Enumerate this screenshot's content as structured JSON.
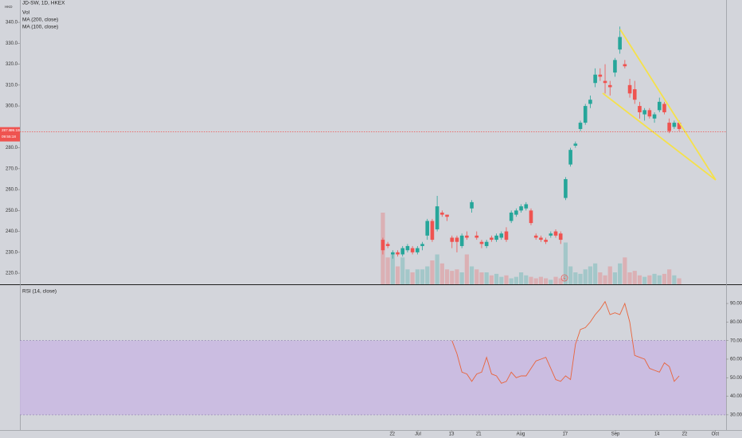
{
  "chart_data": {
    "type": "candlestick",
    "title": "JD-SW, 1D, HKEX",
    "currency": "HKD",
    "legend": [
      "Vol",
      "MA (200, close)",
      "MA (100, close)"
    ],
    "xlim": [
      -73.5,
      69.5
    ],
    "xticks": [
      {
        "value": 1.9,
        "label": "22"
      },
      {
        "value": 7.1,
        "label": "Jul"
      },
      {
        "value": 13.9,
        "label": "13"
      },
      {
        "value": 19.4,
        "label": "21"
      },
      {
        "value": 27.9,
        "label": "Aug"
      },
      {
        "value": 36.9,
        "label": "17"
      },
      {
        "value": 47.1,
        "label": "Sep"
      },
      {
        "value": 55.5,
        "label": "14"
      },
      {
        "value": 61.1,
        "label": "22"
      },
      {
        "value": 67.3,
        "label": "Oct"
      }
    ],
    "ylim": [
      214.7,
      350.7
    ],
    "yticks": [
      {
        "value": 220,
        "label": "220.0"
      },
      {
        "value": 230,
        "label": "230.0"
      },
      {
        "value": 240,
        "label": "240.0"
      },
      {
        "value": 250,
        "label": "250.0"
      },
      {
        "value": 260,
        "label": "260.0"
      },
      {
        "value": 270,
        "label": "270.0"
      },
      {
        "value": 280,
        "label": "280.0"
      },
      {
        "value": 300,
        "label": "300.0"
      },
      {
        "value": 310,
        "label": "310.0"
      },
      {
        "value": 320,
        "label": "320.0"
      },
      {
        "value": 330,
        "label": "330.0"
      },
      {
        "value": 340,
        "label": "340.0"
      }
    ],
    "up_color": "#26a69a",
    "down_color": "#ef5350",
    "open": [
      236,
      234,
      229,
      230,
      229,
      231,
      232,
      230,
      233,
      238,
      245,
      241,
      249,
      248,
      237,
      237,
      233,
      238,
      251,
      238,
      235,
      233,
      237,
      236,
      237,
      240,
      245,
      248,
      250,
      251,
      250,
      238,
      237,
      236,
      238,
      240,
      239,
      256,
      272,
      281,
      289,
      292,
      301,
      311,
      315,
      312,
      310,
      316,
      327,
      320,
      310,
      308,
      300,
      296,
      298,
      294,
      298,
      301,
      292,
      290,
      292
    ],
    "high": [
      237,
      235,
      231,
      231,
      233,
      234,
      233,
      233,
      235,
      246,
      246,
      257,
      250,
      248,
      238,
      238,
      239,
      240,
      255,
      240,
      236,
      236,
      238,
      239,
      240,
      242,
      250,
      251,
      253,
      254,
      251,
      239,
      238,
      237,
      240,
      241,
      240,
      266,
      280,
      283,
      293,
      301,
      305,
      318,
      318,
      320,
      312,
      323,
      338,
      322,
      313,
      312,
      302,
      299,
      299,
      297,
      304,
      302,
      294,
      293,
      293
    ],
    "low": [
      229,
      232,
      227,
      228,
      228,
      230,
      229,
      229,
      231,
      236,
      235,
      240,
      247,
      245,
      232,
      230,
      232,
      236,
      249,
      236,
      232,
      232,
      235,
      235,
      236,
      235,
      244,
      247,
      249,
      250,
      243,
      236,
      235,
      234,
      237,
      237,
      234,
      255,
      271,
      280,
      288,
      291,
      299,
      309,
      312,
      306,
      305,
      314,
      325,
      318,
      304,
      301,
      294,
      293,
      294,
      292,
      297,
      296,
      287,
      289,
      288
    ],
    "close": [
      231,
      233,
      230,
      229,
      232,
      233,
      230,
      232,
      234,
      245,
      236,
      252,
      248,
      247,
      235,
      235,
      238,
      237,
      254,
      237,
      234,
      235,
      236,
      238,
      239,
      236,
      249,
      250,
      252,
      253,
      244,
      237,
      236,
      235,
      239,
      238,
      236,
      265,
      279,
      282,
      292,
      300,
      303,
      315,
      314,
      311,
      309,
      322,
      333,
      319,
      306,
      303,
      297,
      298,
      295,
      296,
      302,
      297,
      288,
      292,
      289
    ],
    "volume": {
      "name": "Vol",
      "values": [
        48,
        18,
        20,
        12,
        18,
        10,
        8,
        10,
        10,
        12,
        16,
        20,
        14,
        10,
        9,
        10,
        8,
        20,
        12,
        10,
        8,
        8,
        6,
        7,
        5,
        6,
        4,
        5,
        8,
        6,
        5,
        4,
        5,
        4,
        3,
        5,
        4,
        28,
        12,
        8,
        7,
        10,
        12,
        14,
        8,
        6,
        12,
        8,
        14,
        18,
        8,
        9,
        6,
        5,
        6,
        7,
        6,
        7,
        10,
        6,
        4
      ]
    },
    "last_price": {
      "value": 287.6,
      "label": "287.6"
    },
    "last_price_volume": "99.1B",
    "countdown": "09:55:18",
    "earnings_marker": "E",
    "rsi": {
      "title": "RSI (14, close)",
      "color": "#e8643c",
      "values": [
        null,
        null,
        null,
        null,
        null,
        null,
        null,
        null,
        null,
        null,
        null,
        null,
        null,
        null,
        70,
        63,
        53,
        52,
        48,
        52,
        53,
        61,
        52,
        51,
        47,
        48,
        53,
        50,
        51,
        51,
        55,
        59,
        60,
        61,
        55,
        49,
        48,
        51,
        49,
        68,
        76,
        77,
        80,
        84,
        87,
        91,
        84,
        85,
        84,
        90,
        80,
        62,
        61,
        60,
        55,
        54,
        53,
        58,
        56,
        48,
        51
      ],
      "ylim": [
        21.8,
        99.9
      ],
      "yticks": [
        {
          "value": 30,
          "label": "30.00"
        },
        {
          "value": 40,
          "label": "40.00"
        },
        {
          "value": 50,
          "label": "50.00"
        },
        {
          "value": 60,
          "label": "60.00"
        },
        {
          "value": 70,
          "label": "70.00"
        },
        {
          "value": 80,
          "label": "80.00"
        },
        {
          "value": 90,
          "label": "90.00"
        }
      ],
      "band": [
        30,
        70
      ],
      "band_color": "#c9b9e2"
    }
  }
}
